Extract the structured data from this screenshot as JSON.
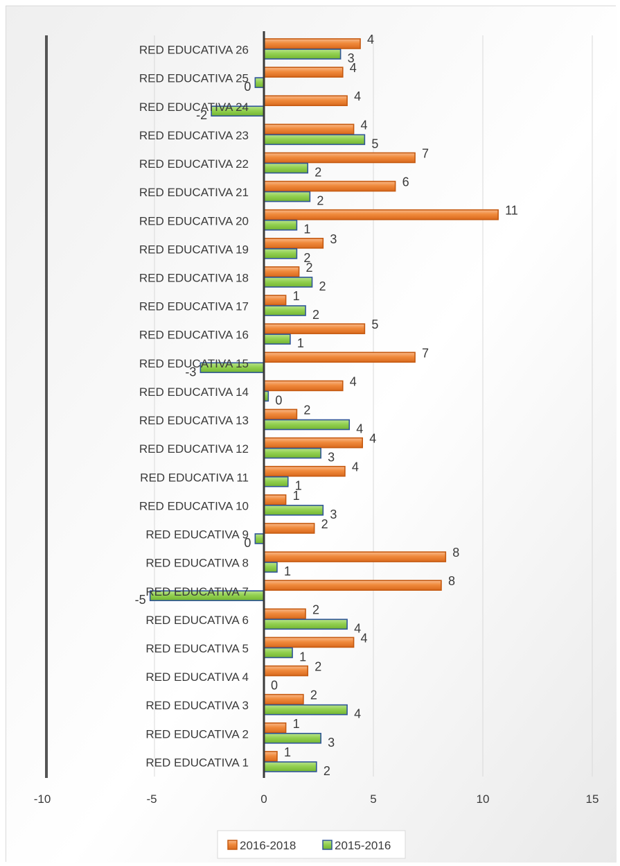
{
  "chart_data": {
    "type": "bar",
    "orientation": "horizontal",
    "categories": [
      "RED EDUCATIVA 1",
      "RED EDUCATIVA 2",
      "RED EDUCATIVA 3",
      "RED EDUCATIVA 4",
      "RED EDUCATIVA 5",
      "RED EDUCATIVA 6",
      "RED EDUCATIVA 7",
      "RED EDUCATIVA 8",
      "RED EDUCATIVA 9",
      "RED EDUCATIVA 10",
      "RED EDUCATIVA 11",
      "RED EDUCATIVA 12",
      "RED EDUCATIVA 13",
      "RED EDUCATIVA 14",
      "RED EDUCATIVA 15",
      "RED EDUCATIVA 16",
      "RED EDUCATIVA 17",
      "RED EDUCATIVA 18",
      "RED EDUCATIVA 19",
      "RED EDUCATIVA 20",
      "RED EDUCATIVA 21",
      "RED EDUCATIVA 22",
      "RED EDUCATIVA 23",
      "RED EDUCATIVA 24",
      "RED EDUCATIVA 25",
      "RED EDUCATIVA 26"
    ],
    "series": [
      {
        "name": "2016-2018",
        "color": "#F08A3C",
        "values": [
          0.6,
          1.0,
          1.8,
          2.0,
          4.1,
          1.9,
          8.1,
          8.3,
          2.3,
          1.0,
          3.7,
          4.5,
          1.5,
          3.6,
          6.9,
          4.6,
          1.0,
          1.6,
          2.7,
          10.7,
          6.0,
          6.9,
          4.1,
          3.8,
          3.6,
          4.4
        ],
        "labels": [
          "1",
          "1",
          "2",
          "2",
          "4",
          "2",
          "8",
          "8",
          "2",
          "1",
          "4",
          "4",
          "2",
          "4",
          "7",
          "5",
          "1",
          "2",
          "3",
          "11",
          "6",
          "7",
          "4",
          "4",
          "4",
          "4"
        ]
      },
      {
        "name": "2015-2016",
        "color": "#92D050",
        "values": [
          2.4,
          2.6,
          3.8,
          0.0,
          1.3,
          3.8,
          -5.2,
          0.6,
          -0.4,
          2.7,
          1.1,
          2.6,
          3.9,
          0.2,
          -2.9,
          1.2,
          1.9,
          2.2,
          1.5,
          1.5,
          2.1,
          2.0,
          4.6,
          -2.4,
          -0.4,
          3.5
        ],
        "labels": [
          "2",
          "3",
          "4",
          "0",
          "1",
          "4",
          "-5",
          "1",
          "0",
          "3",
          "1",
          "3",
          "4",
          "0",
          "-3",
          "1",
          "2",
          "2",
          "2",
          "1",
          "2",
          "2",
          "5",
          "-2",
          "0",
          "3"
        ]
      }
    ],
    "xlim": [
      -10,
      15
    ],
    "xticks": [
      "-10",
      "-5",
      "0",
      "5",
      "10",
      "15"
    ],
    "xtick_values": [
      -10,
      -5,
      0,
      5,
      10,
      15
    ],
    "grid": true,
    "legend": "bottom",
    "title": "",
    "xlabel": "",
    "ylabel": ""
  }
}
